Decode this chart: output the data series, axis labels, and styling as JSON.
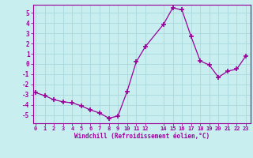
{
  "x": [
    0,
    1,
    2,
    3,
    4,
    5,
    6,
    7,
    8,
    9,
    10,
    11,
    12,
    14,
    15,
    16,
    17,
    18,
    19,
    20,
    21,
    22,
    23
  ],
  "y": [
    -2.8,
    -3.1,
    -3.5,
    -3.7,
    -3.8,
    -4.1,
    -4.5,
    -4.8,
    -5.3,
    -5.1,
    -2.7,
    0.2,
    1.7,
    3.9,
    5.5,
    5.3,
    2.7,
    0.3,
    -0.1,
    -1.3,
    -0.7,
    -0.5,
    0.8
  ],
  "line_color": "#990099",
  "marker": "+",
  "marker_size": 4,
  "bg_color": "#c8eef0",
  "grid_color": "#aad8dc",
  "xlabel": "Windchill (Refroidissement éolien,°C)",
  "yticks": [
    -5,
    -4,
    -3,
    -2,
    -1,
    0,
    1,
    2,
    3,
    4,
    5
  ],
  "ylim": [
    -5.8,
    5.8
  ],
  "xlim": [
    -0.3,
    23.5
  ],
  "xtick_positions": [
    0,
    1,
    2,
    3,
    4,
    5,
    6,
    7,
    8,
    9,
    10,
    11,
    12,
    14,
    15,
    16,
    17,
    18,
    19,
    20,
    21,
    22,
    23
  ],
  "xtick_labels": [
    "0",
    "1",
    "2",
    "3",
    "4",
    "5",
    "6",
    "7",
    "8",
    "9",
    "10",
    "11",
    "12",
    "14",
    "15",
    "16",
    "17",
    "18",
    "19",
    "20",
    "21",
    "22",
    "23"
  ]
}
